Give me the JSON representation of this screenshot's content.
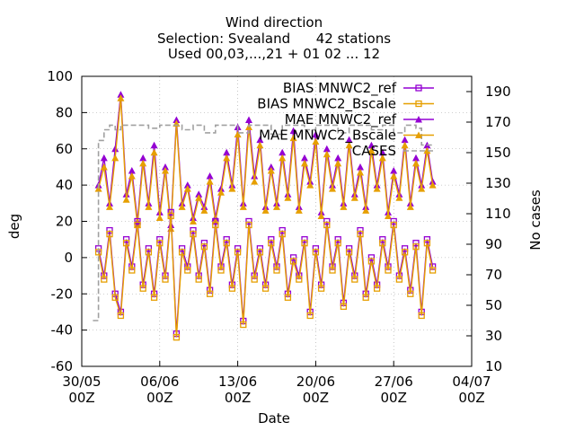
{
  "chart_data": {
    "type": "line",
    "title": "Wind direction",
    "subtitle_lines": [
      "Selection: Svealand      42 stations",
      "Used 00,03,...,21 + 01 02 ... 12"
    ],
    "xlabel": "Date",
    "ylabel": "deg",
    "y2label": "No cases",
    "xlim": [
      0,
      35
    ],
    "ylim": [
      -60,
      100
    ],
    "y2lim": [
      10,
      200
    ],
    "x_ticks": [
      {
        "x": 0,
        "line1": "30/05",
        "line2": "00Z"
      },
      {
        "x": 7,
        "line1": "06/06",
        "line2": "00Z"
      },
      {
        "x": 14,
        "line1": "13/06",
        "line2": "00Z"
      },
      {
        "x": 21,
        "line1": "20/06",
        "line2": "00Z"
      },
      {
        "x": 28,
        "line1": "27/06",
        "line2": "00Z"
      },
      {
        "x": 35,
        "line1": "04/07",
        "line2": "00Z"
      }
    ],
    "y_ticks": [
      -60,
      -40,
      -20,
      0,
      20,
      40,
      60,
      80,
      100
    ],
    "y2_ticks": [
      10,
      30,
      50,
      70,
      90,
      110,
      130,
      150,
      170,
      190
    ],
    "grid": true,
    "legend_position": "top-right",
    "colors": {
      "ref": "#9400d3",
      "scale": "#e69f00",
      "cases": "#a0a0a0"
    },
    "legend": [
      {
        "label": "BIAS MNWC2_ref",
        "color": "#9400d3",
        "marker": "square"
      },
      {
        "label": "BIAS MNWC2_Bscale",
        "color": "#e69f00",
        "marker": "square"
      },
      {
        "label": "MAE MNWC2_ref",
        "color": "#9400d3",
        "marker": "triangle"
      },
      {
        "label": "MAE MNWC2_Bscale",
        "color": "#e69f00",
        "marker": "triangle"
      },
      {
        "label": "CASES",
        "color": "#a0a0a0",
        "marker": "dash"
      }
    ],
    "series": [
      {
        "kind": "mae",
        "color": "#9400d3",
        "marker": "triangle",
        "x": [
          1.5,
          2.0,
          2.5,
          3.0,
          3.5,
          4.0,
          4.5,
          5.0,
          5.5,
          6.0,
          6.5,
          7.0,
          7.5,
          8.0,
          8.5,
          9.0,
          9.5,
          10.0,
          10.5,
          11.0,
          11.5,
          12.0,
          12.5,
          13.0,
          13.5,
          14.0,
          14.5,
          15.0,
          15.5,
          16.0,
          16.5,
          17.0,
          17.5,
          18.0,
          18.5,
          19.0,
          19.5,
          20.0,
          20.5,
          21.0,
          21.5,
          22.0,
          22.5,
          23.0,
          23.5,
          24.0,
          24.5,
          25.0,
          25.5,
          26.0,
          26.5,
          27.0,
          27.5,
          28.0,
          28.5,
          29.0,
          29.5,
          30.0,
          30.5,
          31.0,
          31.5
        ],
        "values": [
          40,
          55,
          30,
          60,
          90,
          35,
          48,
          20,
          55,
          30,
          62,
          25,
          50,
          18,
          76,
          30,
          40,
          22,
          35,
          28,
          45,
          22,
          38,
          58,
          40,
          72,
          30,
          76,
          45,
          65,
          28,
          50,
          30,
          58,
          35,
          70,
          28,
          55,
          42,
          68,
          25,
          60,
          40,
          55,
          30,
          65,
          35,
          50,
          28,
          62,
          40,
          58,
          25,
          48,
          35,
          65,
          30,
          55,
          40,
          62,
          42
        ]
      },
      {
        "kind": "mae",
        "color": "#e69f00",
        "marker": "triangle",
        "x": [
          1.5,
          2.0,
          2.5,
          3.0,
          3.5,
          4.0,
          4.5,
          5.0,
          5.5,
          6.0,
          6.5,
          7.0,
          7.5,
          8.0,
          8.5,
          9.0,
          9.5,
          10.0,
          10.5,
          11.0,
          11.5,
          12.0,
          12.5,
          13.0,
          13.5,
          14.0,
          14.5,
          15.0,
          15.5,
          16.0,
          16.5,
          17.0,
          17.5,
          18.0,
          18.5,
          19.0,
          19.5,
          20.0,
          20.5,
          21.0,
          21.5,
          22.0,
          22.5,
          23.0,
          23.5,
          24.0,
          24.5,
          25.0,
          25.5,
          26.0,
          26.5,
          27.0,
          27.5,
          28.0,
          28.5,
          29.0,
          29.5,
          30.0,
          30.5,
          31.0,
          31.5
        ],
        "values": [
          38,
          50,
          28,
          55,
          88,
          32,
          45,
          18,
          52,
          28,
          58,
          22,
          48,
          16,
          74,
          28,
          38,
          20,
          33,
          26,
          42,
          20,
          36,
          55,
          38,
          68,
          28,
          72,
          42,
          62,
          26,
          48,
          28,
          55,
          33,
          66,
          26,
          52,
          40,
          64,
          23,
          57,
          38,
          52,
          28,
          62,
          33,
          47,
          26,
          59,
          38,
          55,
          23,
          45,
          33,
          62,
          28,
          52,
          38,
          59,
          40
        ]
      },
      {
        "kind": "bias",
        "color": "#9400d3",
        "marker": "square",
        "x": [
          1.5,
          2.0,
          2.5,
          3.0,
          3.5,
          4.0,
          4.5,
          5.0,
          5.5,
          6.0,
          6.5,
          7.0,
          7.5,
          8.0,
          8.5,
          9.0,
          9.5,
          10.0,
          10.5,
          11.0,
          11.5,
          12.0,
          12.5,
          13.0,
          13.5,
          14.0,
          14.5,
          15.0,
          15.5,
          16.0,
          16.5,
          17.0,
          17.5,
          18.0,
          18.5,
          19.0,
          19.5,
          20.0,
          20.5,
          21.0,
          21.5,
          22.0,
          22.5,
          23.0,
          23.5,
          24.0,
          24.5,
          25.0,
          25.5,
          26.0,
          26.5,
          27.0,
          27.5,
          28.0,
          28.5,
          29.0,
          29.5,
          30.0,
          30.5,
          31.0,
          31.5
        ],
        "values": [
          5,
          -10,
          15,
          -20,
          -30,
          10,
          -5,
          20,
          -15,
          5,
          -20,
          10,
          -10,
          25,
          -42,
          5,
          -5,
          15,
          -10,
          8,
          -18,
          20,
          -5,
          10,
          -15,
          5,
          -35,
          20,
          -10,
          5,
          -15,
          10,
          -5,
          15,
          -20,
          0,
          -10,
          10,
          -30,
          5,
          -15,
          20,
          -5,
          10,
          -25,
          5,
          -10,
          15,
          -20,
          0,
          -15,
          10,
          -5,
          20,
          -10,
          5,
          -18,
          8,
          -30,
          10,
          -5
        ]
      },
      {
        "kind": "bias",
        "color": "#e69f00",
        "marker": "square",
        "x": [
          1.5,
          2.0,
          2.5,
          3.0,
          3.5,
          4.0,
          4.5,
          5.0,
          5.5,
          6.0,
          6.5,
          7.0,
          7.5,
          8.0,
          8.5,
          9.0,
          9.5,
          10.0,
          10.5,
          11.0,
          11.5,
          12.0,
          12.5,
          13.0,
          13.5,
          14.0,
          14.5,
          15.0,
          15.5,
          16.0,
          16.5,
          17.0,
          17.5,
          18.0,
          18.5,
          19.0,
          19.5,
          20.0,
          20.5,
          21.0,
          21.5,
          22.0,
          22.5,
          23.0,
          23.5,
          24.0,
          24.5,
          25.0,
          25.5,
          26.0,
          26.5,
          27.0,
          27.5,
          28.0,
          28.5,
          29.0,
          29.5,
          30.0,
          30.5,
          31.0,
          31.5
        ],
        "values": [
          3,
          -12,
          13,
          -22,
          -32,
          8,
          -7,
          18,
          -17,
          3,
          -22,
          8,
          -12,
          23,
          -44,
          3,
          -7,
          13,
          -12,
          6,
          -20,
          18,
          -7,
          8,
          -17,
          3,
          -37,
          18,
          -12,
          3,
          -17,
          8,
          -7,
          13,
          -22,
          -2,
          -12,
          8,
          -32,
          3,
          -17,
          18,
          -7,
          8,
          -27,
          3,
          -12,
          13,
          -22,
          -2,
          -17,
          8,
          -7,
          18,
          -12,
          3,
          -20,
          6,
          -32,
          8,
          -7
        ]
      },
      {
        "kind": "cases",
        "color": "#a0a0a0",
        "marker": "dash",
        "x": [
          1.0,
          1.5,
          2.0,
          2.5,
          3.0,
          3.5,
          4.0,
          5.0,
          6.0,
          7.0,
          8.0,
          9.0,
          10.0,
          11.0,
          12.0,
          13.0,
          14.0,
          15.0,
          16.0,
          17.0,
          18.0,
          19.0,
          20.0,
          21.0,
          22.0,
          23.0,
          24.0,
          25.0,
          26.0,
          27.0,
          28.0,
          29.0,
          30.0,
          30.5,
          31.5
        ],
        "values": [
          40,
          158,
          165,
          168,
          165,
          168,
          168,
          168,
          166,
          168,
          168,
          165,
          168,
          163,
          168,
          168,
          163,
          168,
          168,
          162,
          168,
          168,
          165,
          168,
          168,
          163,
          168,
          168,
          165,
          168,
          163,
          168,
          166,
          155,
          155
        ]
      }
    ]
  }
}
